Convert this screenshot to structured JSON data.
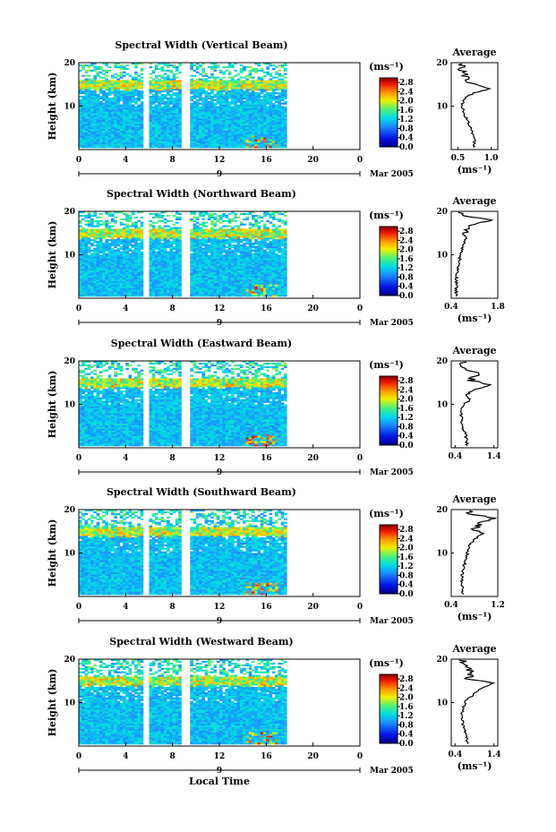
{
  "chart_data": [
    {
      "type": "heatmap",
      "title": "Spectral Width (Vertical Beam)",
      "ylabel": "Height (km)",
      "xticks": [
        "0",
        "4",
        "8",
        "12",
        "16",
        "20",
        "0"
      ],
      "yticks": [
        "20",
        "10"
      ],
      "ylim": [
        0,
        20
      ],
      "xlim": [
        0,
        24
      ],
      "date_label": "9",
      "month_label": "Mar 2005",
      "colorbar": {
        "unit": "(ms⁻¹)",
        "ticks": [
          "2.8",
          "2.4",
          "2.0",
          "1.6",
          "1.2",
          "0.8",
          "0.4",
          "0.0"
        ],
        "range": [
          0,
          3.0
        ]
      },
      "profile": {
        "title": "Average",
        "xlabel": "(ms⁻¹)",
        "xticks": [
          "0.5",
          "1.0"
        ],
        "xlim": [
          0.4,
          1.1
        ],
        "yticks": [
          "20",
          "10"
        ],
        "values": [
          [
            0.75,
            2
          ],
          [
            0.72,
            4
          ],
          [
            0.66,
            6
          ],
          [
            0.6,
            8
          ],
          [
            0.56,
            10
          ],
          [
            0.6,
            12
          ],
          [
            0.74,
            13
          ],
          [
            0.98,
            14
          ],
          [
            0.68,
            15.5
          ],
          [
            0.6,
            17
          ],
          [
            0.55,
            19
          ]
        ]
      },
      "data_gaps_hours": [
        [
          5.6,
          5.9
        ],
        [
          8.9,
          9.4
        ]
      ],
      "data_end_hour": 17.6
    },
    {
      "type": "heatmap",
      "title": "Spectral Width (Northward Beam)",
      "ylabel": "Height (km)",
      "xticks": [
        "0",
        "4",
        "8",
        "12",
        "16",
        "20",
        "0"
      ],
      "yticks": [
        "20",
        "10"
      ],
      "ylim": [
        0,
        20
      ],
      "xlim": [
        0,
        24
      ],
      "date_label": "9",
      "month_label": "Mar 2005",
      "colorbar": {
        "unit": "(ms⁻¹)",
        "ticks": [
          "2.8",
          "2.4",
          "2.0",
          "1.6",
          "1.2",
          "0.8",
          "0.4",
          "0.0"
        ],
        "range": [
          0,
          3.0
        ]
      },
      "profile": {
        "title": "Average",
        "xlabel": "(ms⁻¹)",
        "xticks": [
          "0.4",
          "1.8"
        ],
        "xlim": [
          0.4,
          1.8
        ],
        "yticks": [
          "20",
          "10"
        ],
        "values": [
          [
            0.55,
            1
          ],
          [
            0.55,
            4
          ],
          [
            0.6,
            7
          ],
          [
            0.68,
            10
          ],
          [
            0.74,
            12
          ],
          [
            0.88,
            14
          ],
          [
            0.75,
            15
          ],
          [
            0.9,
            16
          ],
          [
            1.1,
            17
          ],
          [
            1.6,
            18
          ],
          [
            0.7,
            19
          ]
        ]
      },
      "data_gaps_hours": [
        [
          5.6,
          5.9
        ],
        [
          8.9,
          9.4
        ]
      ],
      "data_end_hour": 17.6
    },
    {
      "type": "heatmap",
      "title": "Spectral Width (Eastward Beam)",
      "ylabel": "Height (km)",
      "xticks": [
        "0",
        "4",
        "8",
        "12",
        "16",
        "20",
        "0"
      ],
      "yticks": [
        "20",
        "10"
      ],
      "ylim": [
        0,
        20
      ],
      "xlim": [
        0,
        24
      ],
      "date_label": "9",
      "month_label": "Mar 2005",
      "colorbar": {
        "unit": "(ms⁻¹)",
        "ticks": [
          "2.8",
          "2.4",
          "2.0",
          "1.6",
          "1.2",
          "0.8",
          "0.4",
          "0.0"
        ],
        "range": [
          0,
          3.0
        ]
      },
      "profile": {
        "title": "Average",
        "xlabel": "",
        "xticks": [
          "0.4",
          "1.4"
        ],
        "xlim": [
          0.3,
          1.5
        ],
        "yticks": [
          "20",
          "10"
        ],
        "values": [
          [
            0.7,
            2
          ],
          [
            0.6,
            5
          ],
          [
            0.55,
            8
          ],
          [
            0.62,
            10
          ],
          [
            0.78,
            11
          ],
          [
            0.68,
            12
          ],
          [
            0.8,
            13
          ],
          [
            1.3,
            14.5
          ],
          [
            0.8,
            15.5
          ],
          [
            0.95,
            17
          ],
          [
            0.6,
            19
          ]
        ]
      },
      "data_gaps_hours": [
        [
          5.6,
          5.9
        ],
        [
          8.9,
          9.4
        ]
      ],
      "data_end_hour": 17.6
    },
    {
      "type": "heatmap",
      "title": "Spectral Width (Southward Beam)",
      "ylabel": "Height (km)",
      "xticks": [
        "0",
        "4",
        "8",
        "12",
        "16",
        "20",
        "0"
      ],
      "yticks": [
        "20",
        "10"
      ],
      "ylim": [
        0,
        20
      ],
      "xlim": [
        0,
        24
      ],
      "date_label": "9",
      "month_label": "Mar 2005",
      "colorbar": {
        "unit": "(ms⁻¹)",
        "ticks": [
          "2.8",
          "2.4",
          "2.0",
          "1.6",
          "1.2",
          "0.8",
          "0.4",
          "0.0"
        ],
        "range": [
          0,
          3.0
        ]
      },
      "profile": {
        "title": "Average",
        "xlabel": "(ms⁻¹)",
        "xticks": [
          "0.4",
          "1.2"
        ],
        "xlim": [
          0.4,
          1.2
        ],
        "yticks": [
          "20",
          "10"
        ],
        "values": [
          [
            0.6,
            1
          ],
          [
            0.58,
            4
          ],
          [
            0.62,
            7
          ],
          [
            0.68,
            10
          ],
          [
            0.72,
            12
          ],
          [
            0.78,
            13
          ],
          [
            0.95,
            14.5
          ],
          [
            0.8,
            15.5
          ],
          [
            0.9,
            17
          ],
          [
            1.15,
            18
          ],
          [
            0.7,
            19
          ]
        ]
      },
      "data_gaps_hours": [
        [
          5.6,
          5.9
        ],
        [
          8.9,
          9.4
        ]
      ],
      "data_end_hour": 17.6
    },
    {
      "type": "heatmap",
      "title": "Spectral Width (Westward Beam)",
      "ylabel": "Height (km)",
      "xlabel": "Local Time",
      "xticks": [
        "0",
        "4",
        "8",
        "12",
        "16",
        "20",
        "0"
      ],
      "yticks": [
        "20",
        "10"
      ],
      "ylim": [
        0,
        20
      ],
      "xlim": [
        0,
        24
      ],
      "date_label": "9",
      "month_label": "Mar 2005",
      "colorbar": {
        "unit": "(ms⁻¹)",
        "ticks": [
          "2.8",
          "2.4",
          "2.0",
          "1.6",
          "1.2",
          "0.8",
          "0.4",
          "0.0"
        ],
        "range": [
          0,
          3.0
        ]
      },
      "profile": {
        "title": "Average",
        "xlabel": "(ms⁻¹)",
        "xticks": [
          "0.4",
          "1.4"
        ],
        "xlim": [
          0.3,
          1.5
        ],
        "yticks": [
          "20",
          "10"
        ],
        "values": [
          [
            0.7,
            2
          ],
          [
            0.6,
            5
          ],
          [
            0.58,
            8
          ],
          [
            0.65,
            10
          ],
          [
            0.75,
            11
          ],
          [
            0.9,
            12
          ],
          [
            1.0,
            13
          ],
          [
            1.4,
            14.5
          ],
          [
            0.75,
            15.5
          ],
          [
            0.85,
            17
          ],
          [
            0.6,
            19
          ]
        ]
      },
      "data_gaps_hours": [
        [
          5.6,
          5.9
        ],
        [
          8.9,
          9.4
        ]
      ],
      "data_end_hour": 17.6
    }
  ]
}
